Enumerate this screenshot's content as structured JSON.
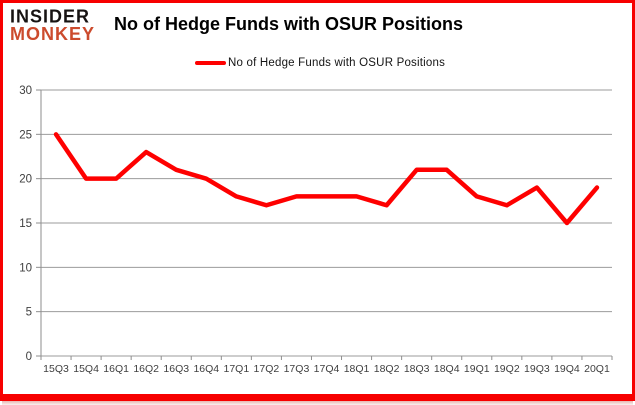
{
  "logo": {
    "line1": "INSIDER",
    "line2": "MONKEY"
  },
  "header": {
    "title": "No of Hedge Funds with OSUR Positions"
  },
  "legend": {
    "label": "No of Hedge Funds with OSUR Positions"
  },
  "colors": {
    "series": "#fe0000",
    "border": "#f70000",
    "grid": "#9b9b9b",
    "axis": "#8e8e8e",
    "tick_text": "#3f3f3f",
    "logo_black": "#171312",
    "logo_accent": "#cc4b2d"
  },
  "chart_data": {
    "type": "line",
    "title": "No of Hedge Funds with OSUR Positions",
    "categories": [
      "15Q3",
      "15Q4",
      "16Q1",
      "16Q2",
      "16Q3",
      "16Q4",
      "17Q1",
      "17Q2",
      "17Q3",
      "17Q4",
      "18Q1",
      "18Q2",
      "18Q3",
      "18Q4",
      "19Q1",
      "19Q2",
      "19Q3",
      "19Q4",
      "20Q1"
    ],
    "series": [
      {
        "name": "No of Hedge Funds with OSUR Positions",
        "values": [
          25,
          20,
          20,
          23,
          21,
          20,
          18,
          17,
          18,
          18,
          18,
          17,
          21,
          21,
          18,
          17,
          19,
          15,
          19
        ]
      }
    ],
    "xlabel": "",
    "ylabel": "",
    "ylim": [
      0,
      30
    ],
    "y_ticks": [
      0,
      5,
      10,
      15,
      20,
      25,
      30
    ],
    "grid": "horizontal",
    "legend_position": "top"
  }
}
